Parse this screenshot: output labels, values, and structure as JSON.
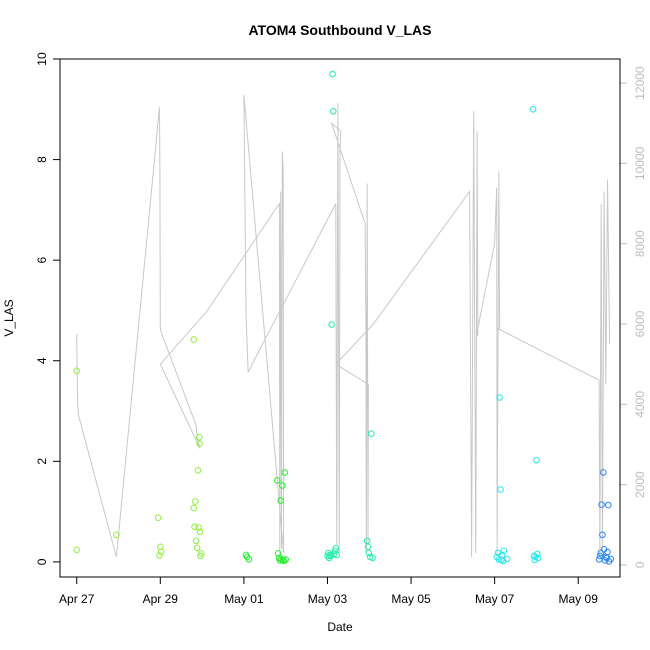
{
  "chart_data": {
    "type": "scatter",
    "title": "ATOM4 Southbound V_LAS",
    "xlabel": "Date",
    "ylabel": "V_LAS",
    "x_ticks": [
      "Apr 27",
      "Apr 29",
      "May 01",
      "May 03",
      "May 05",
      "May 07",
      "May 09"
    ],
    "x_tick_days": [
      0,
      2,
      4,
      6,
      8,
      10,
      12
    ],
    "xlim": [
      -0.4,
      13.0
    ],
    "ylim": [
      -0.3,
      10.0
    ],
    "y_ticks": [
      0,
      2,
      4,
      6,
      8,
      10
    ],
    "y2_ticks": [
      0,
      2000,
      4000,
      6000,
      8000,
      10000,
      12000
    ],
    "y2lim": [
      -300,
      12600
    ],
    "grid": false,
    "secondary_line_color": "#c8c8c8",
    "secondary_line": [
      [
        0.0,
        5750
      ],
      [
        0.02,
        4000
      ],
      [
        0.05,
        3700
      ],
      [
        0.95,
        200
      ],
      [
        1.98,
        11400
      ],
      [
        1.99,
        9800
      ],
      [
        2.0,
        5900
      ],
      [
        2.02,
        5800
      ],
      [
        2.85,
        3500
      ],
      [
        2.88,
        3200
      ],
      [
        2.95,
        2900
      ],
      [
        2.0,
        5000
      ],
      [
        3.1,
        6300
      ],
      [
        4.85,
        9000
      ],
      [
        4.86,
        200
      ],
      [
        4.88,
        9300
      ],
      [
        4.9,
        400
      ],
      [
        4.92,
        10300
      ],
      [
        4.94,
        9800
      ],
      [
        4.95,
        300
      ],
      [
        4.0,
        11700
      ],
      [
        4.05,
        6300
      ],
      [
        4.1,
        4800
      ],
      [
        4.15,
        4900
      ],
      [
        6.2,
        9000
      ],
      [
        6.22,
        500
      ],
      [
        6.25,
        11500
      ],
      [
        6.28,
        300
      ],
      [
        6.3,
        10300
      ],
      [
        6.32,
        10800
      ],
      [
        6.1,
        11000
      ],
      [
        6.9,
        8500
      ],
      [
        6.92,
        6000
      ],
      [
        6.93,
        300
      ],
      [
        6.95,
        9500
      ],
      [
        6.97,
        500
      ],
      [
        6.98,
        4500
      ],
      [
        6.2,
        5000
      ],
      [
        7.1,
        6000
      ],
      [
        9.4,
        9300
      ],
      [
        9.45,
        200
      ],
      [
        9.5,
        11300
      ],
      [
        9.55,
        300
      ],
      [
        9.58,
        10800
      ],
      [
        9.6,
        5700
      ],
      [
        9.58,
        5800
      ],
      [
        10.0,
        8000
      ],
      [
        10.05,
        9400
      ],
      [
        10.06,
        300
      ],
      [
        10.1,
        9800
      ],
      [
        10.12,
        5900
      ],
      [
        10.05,
        5900
      ],
      [
        12.5,
        4600
      ],
      [
        12.52,
        200
      ],
      [
        12.55,
        9000
      ],
      [
        12.58,
        300
      ],
      [
        12.62,
        9300
      ],
      [
        12.66,
        4500
      ],
      [
        12.7,
        9600
      ],
      [
        12.75,
        5500
      ]
    ],
    "series": [
      {
        "values": [
          [
            0.0,
            3.8
          ],
          [
            0.0,
            0.24
          ],
          [
            0.95,
            0.54
          ],
          [
            1.95,
            0.88
          ],
          [
            1.98,
            0.13
          ],
          [
            2.0,
            0.3
          ],
          [
            2.02,
            0.2
          ],
          [
            2.8,
            4.42
          ],
          [
            2.8,
            1.07
          ],
          [
            2.82,
            0.7
          ],
          [
            2.84,
            1.2
          ],
          [
            2.86,
            0.42
          ],
          [
            2.88,
            0.28
          ],
          [
            2.9,
            1.82
          ],
          [
            2.92,
            0.68
          ],
          [
            2.93,
            2.48
          ],
          [
            2.94,
            2.35
          ],
          [
            2.95,
            0.6
          ],
          [
            2.96,
            0.12
          ],
          [
            2.98,
            0.17
          ]
        ]
      },
      {
        "values": [
          [
            4.05,
            0.14
          ],
          [
            4.08,
            0.1
          ],
          [
            4.12,
            0.05
          ],
          [
            4.8,
            1.62
          ],
          [
            4.82,
            0.17
          ],
          [
            4.84,
            0.08
          ],
          [
            4.86,
            0.03
          ],
          [
            4.88,
            1.22
          ],
          [
            4.9,
            0.05
          ],
          [
            4.92,
            1.52
          ],
          [
            4.94,
            0.04
          ],
          [
            4.96,
            0.02
          ],
          [
            4.98,
            1.78
          ],
          [
            5.0,
            0.05
          ]
        ]
      },
      {
        "values": [
          [
            6.0,
            0.12
          ],
          [
            6.02,
            0.18
          ],
          [
            6.04,
            0.08
          ],
          [
            6.06,
            0.14
          ],
          [
            6.08,
            0.12
          ],
          [
            6.1,
            4.72
          ],
          [
            6.12,
            9.7
          ],
          [
            6.14,
            8.96
          ],
          [
            6.16,
            0.16
          ],
          [
            6.18,
            0.22
          ],
          [
            6.2,
            0.27
          ],
          [
            6.22,
            0.14
          ],
          [
            6.95,
            0.42
          ],
          [
            6.97,
            0.3
          ],
          [
            6.99,
            0.18
          ],
          [
            7.02,
            0.1
          ],
          [
            7.05,
            2.55
          ],
          [
            7.08,
            0.08
          ]
        ]
      },
      {
        "values": [
          [
            10.05,
            0.1
          ],
          [
            10.08,
            0.18
          ],
          [
            10.1,
            0.05
          ],
          [
            10.12,
            3.27
          ],
          [
            10.14,
            1.44
          ],
          [
            10.16,
            0.04
          ],
          [
            10.18,
            0.14
          ],
          [
            10.2,
            0.02
          ],
          [
            10.22,
            0.22
          ],
          [
            10.3,
            0.06
          ],
          [
            10.92,
            9.0
          ],
          [
            10.94,
            0.12
          ],
          [
            10.96,
            0.04
          ],
          [
            10.98,
            0.1
          ],
          [
            11.0,
            2.02
          ],
          [
            11.02,
            0.16
          ],
          [
            11.04,
            0.08
          ]
        ]
      },
      {
        "values": [
          [
            12.5,
            0.05
          ],
          [
            12.52,
            0.12
          ],
          [
            12.54,
            0.18
          ],
          [
            12.56,
            1.14
          ],
          [
            12.58,
            0.54
          ],
          [
            12.6,
            1.78
          ],
          [
            12.62,
            0.25
          ],
          [
            12.64,
            0.03
          ],
          [
            12.66,
            0.1
          ],
          [
            12.68,
            0.08
          ],
          [
            12.7,
            0.2
          ],
          [
            12.72,
            1.13
          ],
          [
            12.74,
            0.01
          ],
          [
            12.78,
            0.06
          ]
        ]
      }
    ],
    "series_colors": [
      "#8ef03a",
      "#22ee2a",
      "#22eeaa",
      "#22e8ee",
      "#2a86ee"
    ]
  }
}
